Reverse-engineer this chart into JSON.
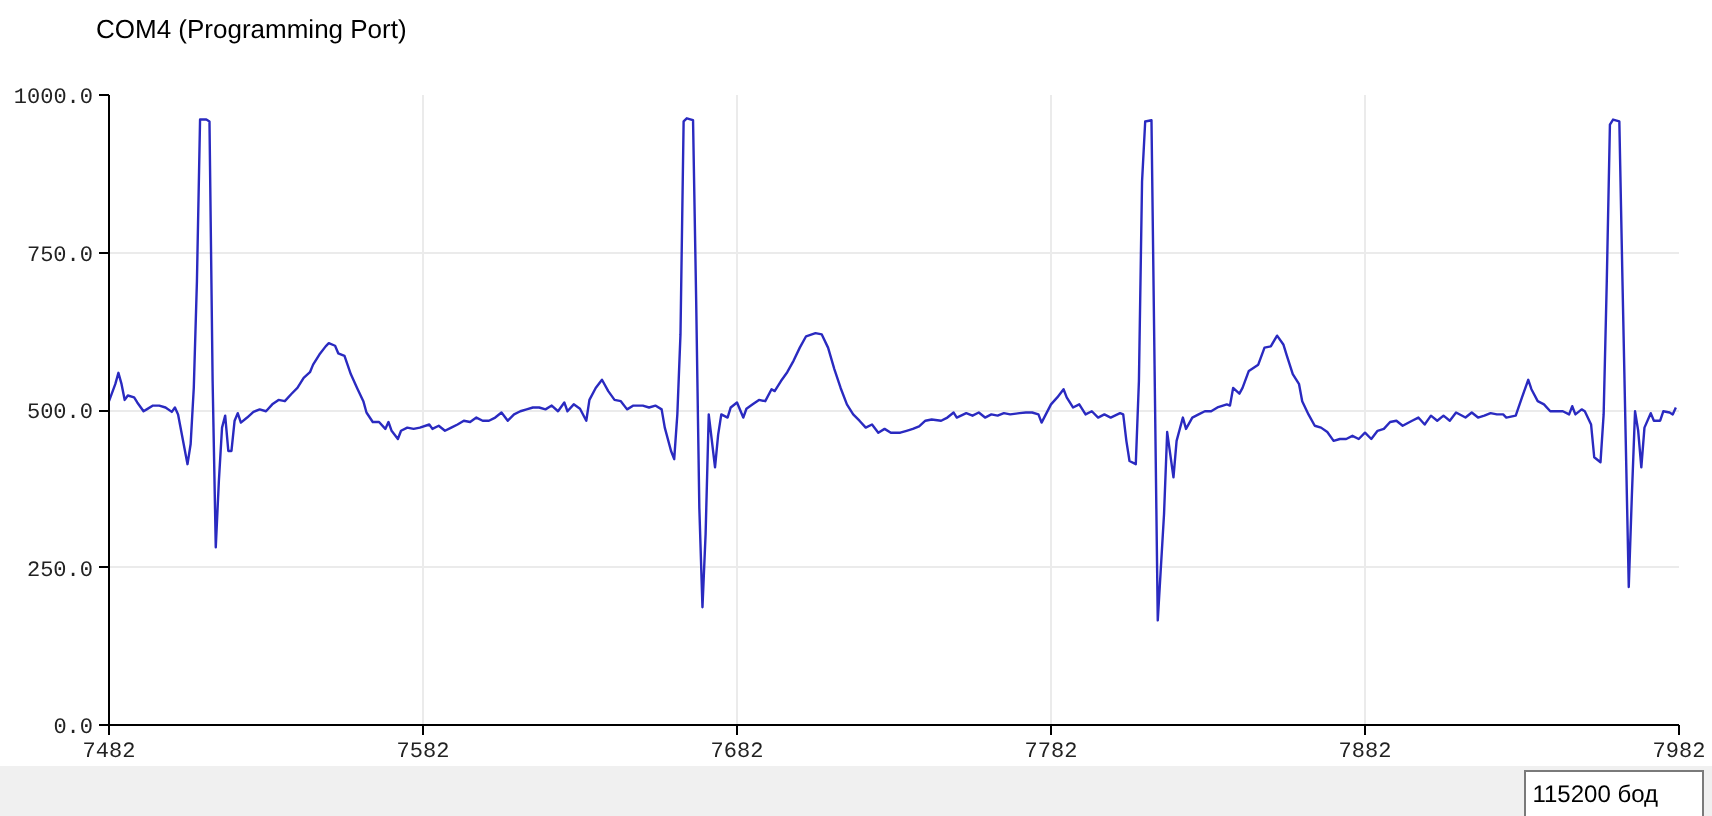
{
  "chart_data": {
    "type": "line",
    "title": "COM4 (Programming Port)",
    "annotations": [
      "115200 бод"
    ],
    "color": "#2a2ac0",
    "xlim": [
      7482,
      7982
    ],
    "ylim": [
      0,
      1000
    ],
    "xticks": [
      7482,
      7582,
      7682,
      7782,
      7882,
      7982
    ],
    "yticks": [
      {
        "value": 0,
        "label": "0.0"
      },
      {
        "value": 250,
        "label": "250.0"
      },
      {
        "value": 500,
        "label": "500.0"
      },
      {
        "value": 750,
        "label": "750.0"
      },
      {
        "value": 1000,
        "label": "1000.0"
      }
    ],
    "grid": true,
    "x": [
      7482,
      7484,
      7485,
      7486,
      7487,
      7488,
      7490,
      7491,
      7493,
      7494,
      7496,
      7498,
      7500,
      7502,
      7503,
      7504,
      7506,
      7507,
      7508,
      7509,
      7510,
      7511,
      7513,
      7514,
      7515,
      7516,
      7517,
      7518,
      7519,
      7520,
      7521,
      7522,
      7523,
      7524,
      7526,
      7528,
      7530,
      7532,
      7534,
      7536,
      7538,
      7540,
      7542,
      7544,
      7546,
      7547,
      7549,
      7551,
      7552,
      7554,
      7555,
      7557,
      7559,
      7561,
      7563,
      7564,
      7566,
      7568,
      7570,
      7571,
      7572,
      7574,
      7575,
      7577,
      7579,
      7581,
      7584,
      7585,
      7587,
      7589,
      7591,
      7593,
      7595,
      7597,
      7599,
      7601,
      7603,
      7605,
      7607,
      7609,
      7611,
      7613,
      7615,
      7617,
      7619,
      7621,
      7623,
      7625,
      7627,
      7628,
      7630,
      7632,
      7634,
      7635,
      7637,
      7639,
      7641,
      7643,
      7645,
      7647,
      7649,
      7652,
      7654,
      7656,
      7658,
      7659,
      7661,
      7662,
      7663,
      7664,
      7665,
      7666,
      7668,
      7669,
      7670,
      7671,
      7672,
      7673,
      7674,
      7675,
      7676,
      7677,
      7679,
      7680,
      7682,
      7684,
      7685,
      7687,
      7689,
      7691,
      7693,
      7694,
      7696,
      7698,
      7700,
      7702,
      7704,
      7707,
      7709,
      7711,
      7713,
      7715,
      7717,
      7719,
      7721,
      7723,
      7725,
      7727,
      7729,
      7731,
      7734,
      7736,
      7738,
      7740,
      7742,
      7744,
      7747,
      7749,
      7751,
      7752,
      7755,
      7757,
      7759,
      7761,
      7763,
      7765,
      7767,
      7769,
      7772,
      7774,
      7776,
      7778,
      7779,
      7782,
      7784,
      7786,
      7787,
      7789,
      7791,
      7793,
      7795,
      7797,
      7799,
      7801,
      7804,
      7805,
      7806,
      7807,
      7809,
      7810,
      7811,
      7812,
      7814,
      7816,
      7818,
      7819,
      7821,
      7822,
      7824,
      7825,
      7827,
      7829,
      7831,
      7833,
      7835,
      7838,
      7839,
      7840,
      7842,
      7843,
      7845,
      7848,
      7850,
      7852,
      7854,
      7856,
      7857,
      7859,
      7861,
      7862,
      7864,
      7866,
      7868,
      7870,
      7872,
      7874,
      7876,
      7878,
      7880,
      7882,
      7884,
      7886,
      7888,
      7890,
      7892,
      7894,
      7897,
      7899,
      7901,
      7903,
      7905,
      7907,
      7909,
      7911,
      7914,
      7916,
      7918,
      7920,
      7922,
      7924,
      7926,
      7927,
      7930,
      7932,
      7934,
      7935,
      7937,
      7939,
      7941,
      7943,
      7945,
      7947,
      7948,
      7949,
      7951,
      7952,
      7954,
      7955,
      7957,
      7958,
      7959,
      7960,
      7961,
      7963,
      7964,
      7966,
      7967,
      7968,
      7969,
      7970,
      7971,
      7973,
      7974,
      7976,
      7977,
      7979,
      7980,
      7981
    ],
    "values": [
      514,
      541,
      559,
      541,
      516,
      523,
      520,
      512,
      498,
      501,
      507,
      507,
      504,
      497,
      504,
      493,
      440,
      414,
      446,
      535,
      704,
      961,
      961,
      958,
      546,
      282,
      388,
      472,
      491,
      435,
      435,
      483,
      495,
      480,
      488,
      497,
      501,
      498,
      509,
      516,
      514,
      525,
      535,
      551,
      560,
      572,
      588,
      601,
      606,
      602,
      590,
      586,
      557,
      535,
      514,
      496,
      481,
      481,
      470,
      481,
      467,
      454,
      467,
      472,
      470,
      472,
      477,
      470,
      475,
      467,
      472,
      477,
      483,
      481,
      488,
      483,
      483,
      488,
      496,
      483,
      493,
      498,
      501,
      504,
      504,
      501,
      507,
      498,
      512,
      498,
      509,
      502,
      483,
      516,
      535,
      548,
      530,
      516,
      514,
      501,
      507,
      507,
      504,
      507,
      501,
      472,
      435,
      422,
      493,
      620,
      958,
      963,
      960,
      673,
      345,
      187,
      303,
      493,
      451,
      409,
      461,
      493,
      488,
      504,
      512,
      488,
      502,
      509,
      516,
      514,
      533,
      530,
      546,
      560,
      578,
      599,
      617,
      622,
      620,
      599,
      565,
      535,
      509,
      493,
      483,
      472,
      477,
      464,
      470,
      464,
      464,
      467,
      470,
      474,
      483,
      485,
      483,
      488,
      496,
      488,
      495,
      491,
      496,
      488,
      493,
      491,
      495,
      493,
      495,
      496,
      496,
      493,
      480,
      509,
      520,
      533,
      520,
      504,
      509,
      493,
      498,
      488,
      493,
      488,
      495,
      493,
      451,
      419,
      414,
      546,
      863,
      958,
      960,
      166,
      335,
      465,
      393,
      451,
      488,
      470,
      488,
      493,
      498,
      498,
      504,
      509,
      507,
      535,
      526,
      535,
      562,
      572,
      599,
      601,
      618,
      604,
      588,
      557,
      541,
      514,
      493,
      475,
      472,
      465,
      451,
      454,
      454,
      459,
      454,
      464,
      454,
      467,
      470,
      481,
      483,
      475,
      483,
      488,
      477,
      491,
      483,
      491,
      483,
      496,
      488,
      496,
      488,
      491,
      495,
      493,
      493,
      488,
      491,
      520,
      548,
      533,
      514,
      509,
      498,
      498,
      498,
      493,
      506,
      493,
      501,
      498,
      477,
      425,
      417,
      493,
      704,
      953,
      961,
      958,
      704,
      219,
      366,
      498,
      467,
      409,
      472,
      495,
      483,
      483,
      498,
      496,
      493,
      504
    ]
  }
}
